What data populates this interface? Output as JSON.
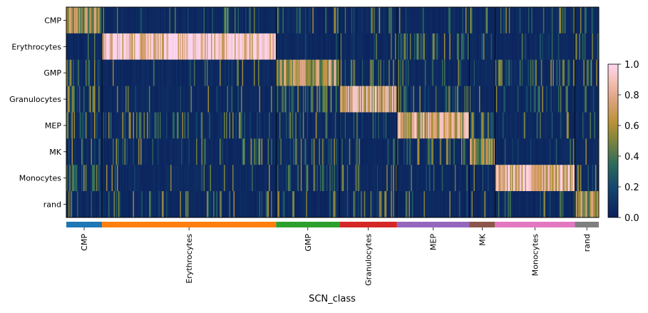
{
  "chart_data": {
    "type": "heatmap",
    "xlabel": "SCN_class",
    "row_labels": [
      "CMP",
      "Erythrocytes",
      "GMP",
      "Granulocytes",
      "MEP",
      "MK",
      "Monocytes",
      "rand"
    ],
    "groups": [
      {
        "label": "CMP",
        "color": "#1f77b4",
        "cell_fraction": 0.067
      },
      {
        "label": "Erythrocytes",
        "color": "#ff7f0e",
        "cell_fraction": 0.327
      },
      {
        "label": "GMP",
        "color": "#2ca02c",
        "cell_fraction": 0.119
      },
      {
        "label": "Granulocytes",
        "color": "#d62728",
        "cell_fraction": 0.108
      },
      {
        "label": "MEP",
        "color": "#9467bd",
        "cell_fraction": 0.136
      },
      {
        "label": "MK",
        "color": "#8c564b",
        "cell_fraction": 0.048
      },
      {
        "label": "Monocytes",
        "color": "#e377c2",
        "cell_fraction": 0.15
      },
      {
        "label": "rand",
        "color": "#7f7f7f",
        "cell_fraction": 0.045
      }
    ],
    "mean_scores": [
      [
        0.55,
        0.05,
        0.1,
        0.08,
        0.06,
        0.08,
        0.07,
        0.1
      ],
      [
        0.05,
        0.92,
        0.04,
        0.05,
        0.2,
        0.12,
        0.05,
        0.1
      ],
      [
        0.15,
        0.03,
        0.6,
        0.1,
        0.06,
        0.05,
        0.2,
        0.12
      ],
      [
        0.2,
        0.03,
        0.25,
        0.75,
        0.15,
        0.05,
        0.08,
        0.12
      ],
      [
        0.15,
        0.15,
        0.1,
        0.08,
        0.7,
        0.25,
        0.05,
        0.08
      ],
      [
        0.08,
        0.08,
        0.1,
        0.05,
        0.12,
        0.55,
        0.05,
        0.06
      ],
      [
        0.2,
        0.05,
        0.2,
        0.1,
        0.05,
        0.05,
        0.8,
        0.15
      ],
      [
        0.1,
        0.08,
        0.08,
        0.1,
        0.06,
        0.06,
        0.08,
        0.55
      ]
    ],
    "colorbar": {
      "range": [
        0.0,
        1.0
      ],
      "ticks": [
        "0.0",
        "0.2",
        "0.4",
        "0.6",
        "0.8",
        "1.0"
      ],
      "colormap": "gist_earth-like (dark navy → teal → olive → salmon → pink)"
    }
  }
}
